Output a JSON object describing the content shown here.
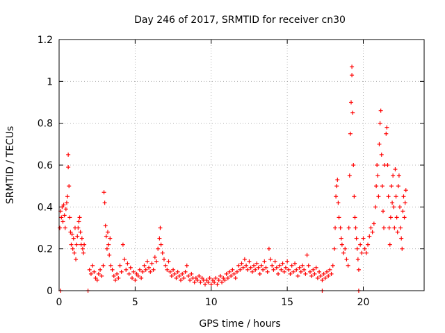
{
  "chart_data": {
    "type": "scatter",
    "title": "Day 246 of 2017, SRMTID for receiver cn30",
    "xlabel": "GPS time / hours",
    "ylabel": "SRMTID / TECUs",
    "xlim": [
      0,
      24
    ],
    "ylim": [
      0,
      1.2
    ],
    "xticks": [
      0,
      5,
      10,
      15,
      20
    ],
    "yticks": [
      0,
      0.2,
      0.4,
      0.6,
      0.8,
      1,
      1.2
    ],
    "xtick_labels": [
      "0",
      "5",
      "10",
      "15",
      "20"
    ],
    "ytick_labels": [
      "0",
      "0.2",
      "0.4",
      "0.6",
      "0.8",
      "1",
      "1.2"
    ],
    "grid": true,
    "marker": "+",
    "color": "#ff0000",
    "series": [
      {
        "name": "SRMTID",
        "points": [
          [
            0.05,
            0.3
          ],
          [
            0.1,
            0.38
          ],
          [
            0.15,
            0.35
          ],
          [
            0.2,
            0.4
          ],
          [
            0.25,
            0.33
          ],
          [
            0.3,
            0.41
          ],
          [
            0.35,
            0.36
          ],
          [
            0.4,
            0.3
          ],
          [
            0.45,
            0.39
          ],
          [
            0.5,
            0.42
          ],
          [
            0.55,
            0.45
          ],
          [
            0.6,
            0.59
          ],
          [
            0.6,
            0.65
          ],
          [
            0.65,
            0.5
          ],
          [
            0.7,
            0.35
          ],
          [
            0.75,
            0.28
          ],
          [
            0.8,
            0.22
          ],
          [
            0.85,
            0.27
          ],
          [
            0.9,
            0.2
          ],
          [
            0.95,
            0.25
          ],
          [
            1.0,
            0.18
          ],
          [
            1.05,
            0.3
          ],
          [
            1.1,
            0.15
          ],
          [
            1.15,
            0.22
          ],
          [
            1.2,
            0.26
          ],
          [
            1.25,
            0.3
          ],
          [
            1.3,
            0.33
          ],
          [
            1.35,
            0.35
          ],
          [
            1.4,
            0.28
          ],
          [
            1.45,
            0.22
          ],
          [
            1.5,
            0.25
          ],
          [
            1.55,
            0.2
          ],
          [
            1.6,
            0.18
          ],
          [
            1.65,
            0.22
          ],
          [
            2.0,
            0.1
          ],
          [
            2.1,
            0.08
          ],
          [
            2.2,
            0.12
          ],
          [
            2.3,
            0.09
          ],
          [
            2.4,
            0.06
          ],
          [
            2.5,
            0.05
          ],
          [
            2.6,
            0.08
          ],
          [
            2.7,
            0.1
          ],
          [
            2.8,
            0.07
          ],
          [
            2.9,
            0.12
          ],
          [
            2.95,
            0.47
          ],
          [
            3.0,
            0.42
          ],
          [
            3.05,
            0.31
          ],
          [
            3.1,
            0.26
          ],
          [
            3.15,
            0.2
          ],
          [
            3.2,
            0.28
          ],
          [
            3.25,
            0.22
          ],
          [
            3.3,
            0.17
          ],
          [
            3.35,
            0.25
          ],
          [
            3.4,
            0.12
          ],
          [
            3.5,
            0.1
          ],
          [
            3.6,
            0.07
          ],
          [
            3.7,
            0.05
          ],
          [
            3.8,
            0.08
          ],
          [
            3.9,
            0.06
          ],
          [
            4.0,
            0.12
          ],
          [
            4.1,
            0.09
          ],
          [
            4.2,
            0.22
          ],
          [
            4.3,
            0.15
          ],
          [
            4.4,
            0.1
          ],
          [
            4.5,
            0.13
          ],
          [
            4.6,
            0.08
          ],
          [
            4.7,
            0.11
          ],
          [
            4.8,
            0.06
          ],
          [
            4.9,
            0.09
          ],
          [
            5.0,
            0.05
          ],
          [
            5.1,
            0.08
          ],
          [
            5.2,
            0.07
          ],
          [
            5.3,
            0.1
          ],
          [
            5.4,
            0.06
          ],
          [
            5.5,
            0.09
          ],
          [
            5.6,
            0.12
          ],
          [
            5.7,
            0.1
          ],
          [
            5.8,
            0.14
          ],
          [
            5.9,
            0.11
          ],
          [
            6.0,
            0.09
          ],
          [
            6.1,
            0.13
          ],
          [
            6.2,
            0.1
          ],
          [
            6.3,
            0.16
          ],
          [
            6.4,
            0.14
          ],
          [
            6.5,
            0.2
          ],
          [
            6.6,
            0.25
          ],
          [
            6.65,
            0.3
          ],
          [
            6.7,
            0.22
          ],
          [
            6.8,
            0.18
          ],
          [
            6.9,
            0.15
          ],
          [
            7.0,
            0.12
          ],
          [
            7.1,
            0.1
          ],
          [
            7.2,
            0.14
          ],
          [
            7.3,
            0.09
          ],
          [
            7.4,
            0.07
          ],
          [
            7.5,
            0.1
          ],
          [
            7.6,
            0.08
          ],
          [
            7.7,
            0.06
          ],
          [
            7.8,
            0.09
          ],
          [
            7.9,
            0.07
          ],
          [
            8.0,
            0.05
          ],
          [
            8.1,
            0.08
          ],
          [
            8.2,
            0.06
          ],
          [
            8.3,
            0.09
          ],
          [
            8.4,
            0.12
          ],
          [
            8.5,
            0.07
          ],
          [
            8.6,
            0.05
          ],
          [
            8.7,
            0.08
          ],
          [
            8.8,
            0.06
          ],
          [
            8.9,
            0.04
          ],
          [
            9.0,
            0.06
          ],
          [
            9.1,
            0.05
          ],
          [
            9.2,
            0.07
          ],
          [
            9.3,
            0.04
          ],
          [
            9.4,
            0.06
          ],
          [
            9.5,
            0.05
          ],
          [
            9.6,
            0.03
          ],
          [
            9.7,
            0.05
          ],
          [
            9.8,
            0.04
          ],
          [
            9.9,
            0.06
          ],
          [
            10.0,
            0.03
          ],
          [
            10.1,
            0.05
          ],
          [
            10.2,
            0.04
          ],
          [
            10.3,
            0.06
          ],
          [
            10.4,
            0.03
          ],
          [
            10.5,
            0.05
          ],
          [
            10.6,
            0.07
          ],
          [
            10.7,
            0.04
          ],
          [
            10.8,
            0.06
          ],
          [
            10.9,
            0.05
          ],
          [
            11.0,
            0.08
          ],
          [
            11.1,
            0.06
          ],
          [
            11.2,
            0.09
          ],
          [
            11.3,
            0.07
          ],
          [
            11.4,
            0.1
          ],
          [
            11.5,
            0.08
          ],
          [
            11.6,
            0.06
          ],
          [
            11.7,
            0.09
          ],
          [
            11.8,
            0.12
          ],
          [
            11.9,
            0.1
          ],
          [
            12.0,
            0.13
          ],
          [
            12.1,
            0.11
          ],
          [
            12.2,
            0.15
          ],
          [
            12.3,
            0.12
          ],
          [
            12.4,
            0.1
          ],
          [
            12.5,
            0.14
          ],
          [
            12.6,
            0.11
          ],
          [
            12.7,
            0.09
          ],
          [
            12.8,
            0.12
          ],
          [
            12.9,
            0.1
          ],
          [
            13.0,
            0.13
          ],
          [
            13.1,
            0.11
          ],
          [
            13.2,
            0.08
          ],
          [
            13.3,
            0.12
          ],
          [
            13.4,
            0.1
          ],
          [
            13.5,
            0.14
          ],
          [
            13.6,
            0.11
          ],
          [
            13.7,
            0.09
          ],
          [
            13.8,
            0.2
          ],
          [
            13.9,
            0.15
          ],
          [
            14.0,
            0.12
          ],
          [
            14.1,
            0.1
          ],
          [
            14.2,
            0.14
          ],
          [
            14.3,
            0.11
          ],
          [
            14.4,
            0.08
          ],
          [
            14.5,
            0.12
          ],
          [
            14.6,
            0.1
          ],
          [
            14.7,
            0.13
          ],
          [
            14.8,
            0.09
          ],
          [
            14.9,
            0.11
          ],
          [
            15.0,
            0.14
          ],
          [
            15.1,
            0.1
          ],
          [
            15.2,
            0.08
          ],
          [
            15.3,
            0.12
          ],
          [
            15.4,
            0.09
          ],
          [
            15.5,
            0.13
          ],
          [
            15.6,
            0.1
          ],
          [
            15.7,
            0.07
          ],
          [
            15.8,
            0.11
          ],
          [
            15.9,
            0.09
          ],
          [
            16.0,
            0.12
          ],
          [
            16.1,
            0.1
          ],
          [
            16.2,
            0.08
          ],
          [
            16.3,
            0.17
          ],
          [
            16.4,
            0.12
          ],
          [
            16.5,
            0.09
          ],
          [
            16.6,
            0.07
          ],
          [
            16.7,
            0.1
          ],
          [
            16.8,
            0.08
          ],
          [
            16.9,
            0.11
          ],
          [
            17.0,
            0.06
          ],
          [
            17.1,
            0.09
          ],
          [
            17.2,
            0.07
          ],
          [
            17.3,
            0.05
          ],
          [
            17.4,
            0.08
          ],
          [
            17.5,
            0.06
          ],
          [
            17.6,
            0.09
          ],
          [
            17.7,
            0.07
          ],
          [
            17.8,
            0.1
          ],
          [
            17.9,
            0.08
          ],
          [
            18.0,
            0.12
          ],
          [
            18.1,
            0.2
          ],
          [
            18.15,
            0.3
          ],
          [
            18.2,
            0.45
          ],
          [
            18.25,
            0.5
          ],
          [
            18.3,
            0.53
          ],
          [
            18.35,
            0.42
          ],
          [
            18.4,
            0.35
          ],
          [
            18.5,
            0.3
          ],
          [
            18.55,
            0.25
          ],
          [
            18.6,
            0.22
          ],
          [
            18.7,
            0.18
          ],
          [
            18.8,
            0.2
          ],
          [
            18.9,
            0.15
          ],
          [
            19.0,
            0.12
          ],
          [
            19.05,
            0.3
          ],
          [
            19.1,
            0.55
          ],
          [
            19.15,
            0.75
          ],
          [
            19.2,
            0.9
          ],
          [
            19.25,
            1.03
          ],
          [
            19.25,
            1.07
          ],
          [
            19.3,
            0.85
          ],
          [
            19.35,
            0.6
          ],
          [
            19.4,
            0.45
          ],
          [
            19.45,
            0.35
          ],
          [
            19.5,
            0.3
          ],
          [
            19.55,
            0.25
          ],
          [
            19.6,
            0.2
          ],
          [
            19.65,
            0.15
          ],
          [
            19.7,
            0.1
          ],
          [
            19.8,
            0.22
          ],
          [
            19.9,
            0.18
          ],
          [
            20.0,
            0.25
          ],
          [
            20.1,
            0.2
          ],
          [
            20.2,
            0.18
          ],
          [
            20.3,
            0.22
          ],
          [
            20.4,
            0.26
          ],
          [
            20.5,
            0.3
          ],
          [
            20.6,
            0.28
          ],
          [
            20.7,
            0.32
          ],
          [
            20.8,
            0.4
          ],
          [
            20.85,
            0.5
          ],
          [
            20.9,
            0.6
          ],
          [
            20.95,
            0.55
          ],
          [
            21.0,
            0.45
          ],
          [
            21.05,
            0.7
          ],
          [
            21.1,
            0.8
          ],
          [
            21.15,
            0.86
          ],
          [
            21.2,
            0.65
          ],
          [
            21.25,
            0.5
          ],
          [
            21.3,
            0.38
          ],
          [
            21.35,
            0.3
          ],
          [
            21.4,
            0.6
          ],
          [
            21.5,
            0.75
          ],
          [
            21.55,
            0.78
          ],
          [
            21.6,
            0.6
          ],
          [
            21.65,
            0.45
          ],
          [
            21.7,
            0.3
          ],
          [
            21.75,
            0.22
          ],
          [
            21.8,
            0.35
          ],
          [
            21.85,
            0.5
          ],
          [
            21.9,
            0.42
          ],
          [
            21.95,
            0.55
          ],
          [
            22.0,
            0.4
          ],
          [
            22.05,
            0.3
          ],
          [
            22.1,
            0.58
          ],
          [
            22.15,
            0.45
          ],
          [
            22.2,
            0.35
          ],
          [
            22.25,
            0.28
          ],
          [
            22.3,
            0.5
          ],
          [
            22.35,
            0.55
          ],
          [
            22.4,
            0.4
          ],
          [
            22.45,
            0.3
          ],
          [
            22.5,
            0.25
          ],
          [
            22.55,
            0.2
          ],
          [
            22.6,
            0.38
          ],
          [
            22.65,
            0.45
          ],
          [
            22.7,
            0.35
          ],
          [
            22.75,
            0.42
          ],
          [
            22.8,
            0.48
          ],
          [
            0.1,
            0.0
          ],
          [
            1.9,
            0.0
          ],
          [
            17.3,
            0.0
          ],
          [
            19.7,
            0.0
          ]
        ]
      }
    ]
  }
}
